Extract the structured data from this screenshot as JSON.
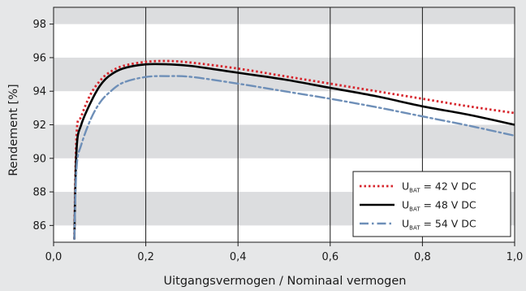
{
  "chart_data": {
    "type": "line",
    "xlabel": "Uitgangsvermogen / Nominaal vermogen",
    "ylabel": "Rendement [%]",
    "xlim": [
      0.0,
      1.0
    ],
    "ylim": [
      85,
      99
    ],
    "xticks": [
      "0,0",
      "0,2",
      "0,4",
      "0,6",
      "0,8",
      "1,0"
    ],
    "yticks": [
      "86",
      "88",
      "90",
      "92",
      "94",
      "96",
      "98"
    ],
    "grid": "vertical lines at 0.2, 0.4, 0.6, 0.8; alternating horizontal bands",
    "legend_position": "bottom-right",
    "series": [
      {
        "name_main": "U",
        "name_sub": "BAT",
        "name_rest": " = 42 V DC",
        "color": "#d7262d",
        "style": "dotted",
        "x": [
          0.045,
          0.05,
          0.06,
          0.08,
          0.1,
          0.12,
          0.15,
          0.2,
          0.25,
          0.3,
          0.4,
          0.5,
          0.6,
          0.7,
          0.8,
          0.9,
          1.0
        ],
        "y": [
          85.2,
          91.5,
          92.5,
          93.8,
          94.6,
          95.1,
          95.5,
          95.75,
          95.8,
          95.7,
          95.35,
          94.9,
          94.45,
          94.0,
          93.55,
          93.1,
          92.7
        ]
      },
      {
        "name_main": "U",
        "name_sub": "BAT",
        "name_rest": " = 48 V DC",
        "color": "#000000",
        "style": "solid",
        "x": [
          0.045,
          0.05,
          0.06,
          0.08,
          0.1,
          0.12,
          0.15,
          0.2,
          0.25,
          0.3,
          0.4,
          0.5,
          0.6,
          0.7,
          0.8,
          0.9,
          1.0
        ],
        "y": [
          85.2,
          90.6,
          92.0,
          93.3,
          94.3,
          94.9,
          95.35,
          95.6,
          95.6,
          95.5,
          95.1,
          94.7,
          94.2,
          93.7,
          93.1,
          92.6,
          92.0
        ]
      },
      {
        "name_main": "U",
        "name_sub": "BAT",
        "name_rest": " = 54 V DC",
        "color": "#6e8fb8",
        "style": "dash-dot",
        "x": [
          0.045,
          0.05,
          0.06,
          0.08,
          0.1,
          0.12,
          0.15,
          0.2,
          0.25,
          0.3,
          0.4,
          0.5,
          0.6,
          0.7,
          0.8,
          0.9,
          1.0
        ],
        "y": [
          85.2,
          89.5,
          90.8,
          92.3,
          93.3,
          93.9,
          94.5,
          94.85,
          94.9,
          94.85,
          94.45,
          94.0,
          93.55,
          93.05,
          92.5,
          91.95,
          91.35
        ]
      }
    ]
  }
}
